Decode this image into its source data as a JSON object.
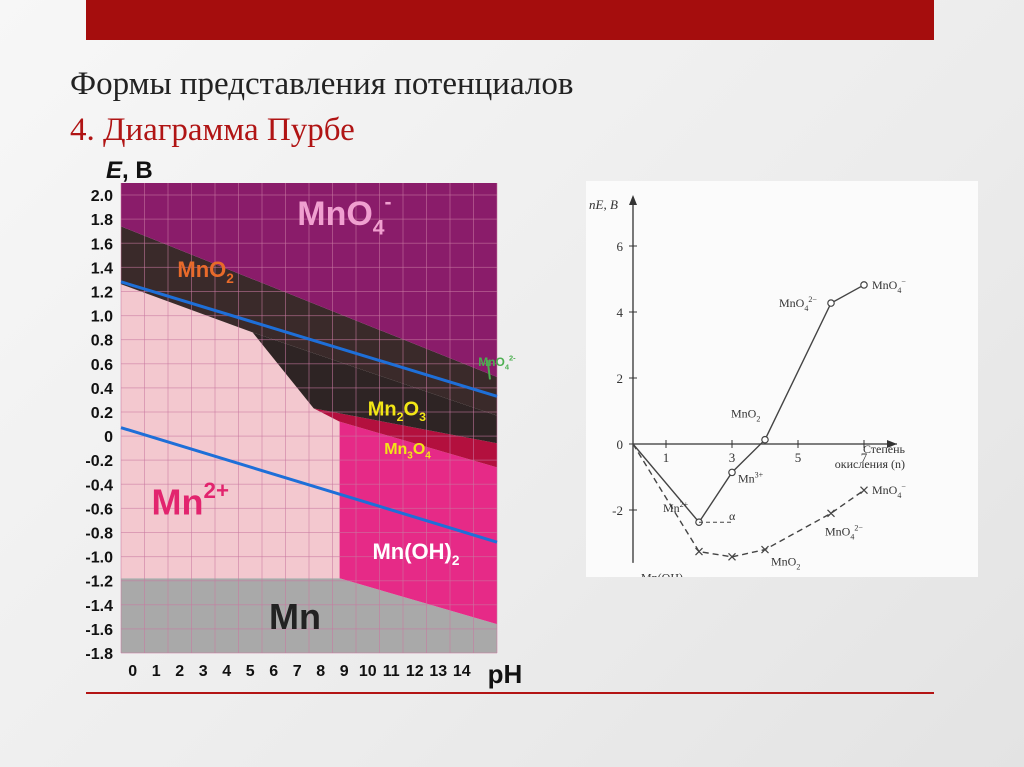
{
  "slide": {
    "title": "Формы представления потенциалов",
    "subtitle": "4. Диаграмма Пурбе"
  },
  "colors": {
    "top_bar": "#a50d0d",
    "title_red": "#b01414",
    "mno4_region": "#8a1c6a",
    "mno2_region": "#3a2a2a",
    "mn2o3_region": "#2e2424",
    "mn3o4_region": "#b3103e",
    "mn2_region": "#f3c8cf",
    "mnoh2_region": "#e62a87",
    "mn_region": "#a9a9a9",
    "water_lines": "#1e6fd8"
  },
  "chart_data": [
    {
      "type": "area",
      "kind": "pourbaix",
      "ylabel_italic": "E",
      "ylabel_unit": ", В",
      "xlabel": "pH",
      "xlim": [
        0,
        16
      ],
      "ylim": [
        -1.8,
        2.1
      ],
      "yticks": [
        "2.0",
        "1.8",
        "1.6",
        "1.4",
        "1.2",
        "1.0",
        "0.8",
        "0.6",
        "0.4",
        "0.2",
        "0",
        "-0.2",
        "-0.4",
        "-0.6",
        "-0.8",
        "-1.0",
        "-1.2",
        "-1.4",
        "-1.6",
        "-1.8"
      ],
      "xticks": [
        "0",
        "1",
        "2",
        "3",
        "4",
        "5",
        "6",
        "7",
        "8",
        "9",
        "10",
        "11",
        "12",
        "13",
        "14"
      ],
      "regions": [
        {
          "id": "mn",
          "label": "Mn",
          "label_sub": "",
          "label_sup": "",
          "label_color": "#222222",
          "points": [
            [
              0,
              -1.18
            ],
            [
              9.3,
              -1.18
            ],
            [
              16,
              -1.56
            ],
            [
              16,
              -1.8
            ],
            [
              0,
              -1.8
            ]
          ]
        },
        {
          "id": "mnoh2",
          "label": "Mn(OH)",
          "label_sub": "2",
          "label_sup": "",
          "label_color": "#ffffff",
          "points": [
            [
              9.3,
              0.12
            ],
            [
              16,
              -0.26
            ],
            [
              16,
              -1.56
            ],
            [
              9.3,
              -1.18
            ]
          ]
        },
        {
          "id": "mn2",
          "label": "Mn",
          "label_sub": "",
          "label_sup": "2+",
          "label_color": "#e2246e",
          "points": [
            [
              0,
              1.26
            ],
            [
              5.6,
              0.86
            ],
            [
              9.3,
              0.12
            ],
            [
              9.3,
              -1.18
            ],
            [
              0,
              -1.18
            ]
          ]
        },
        {
          "id": "mn3o4",
          "label": "Mn",
          "label_sub": "3",
          "label_sup": "",
          "label_color": "#f2e616",
          "label_tail": "O",
          "label_tail_sub": "4",
          "points": [
            [
              8.2,
              0.23
            ],
            [
              16,
              -0.06
            ],
            [
              16,
              -0.26
            ],
            [
              9.3,
              0.12
            ]
          ]
        },
        {
          "id": "mn2o3",
          "label": "Mn",
          "label_sub": "2",
          "label_sup": "",
          "label_color": "#f2e616",
          "label_tail": "O",
          "label_tail_sub": "3",
          "points": [
            [
              5.6,
              0.86
            ],
            [
              8.2,
              0.23
            ],
            [
              16,
              -0.06
            ],
            [
              16,
              0.17
            ]
          ]
        },
        {
          "id": "mno2",
          "label": "MnO",
          "label_sub": "2",
          "label_sup": "",
          "label_color": "#e86a2a",
          "points": [
            [
              0,
              1.74
            ],
            [
              16,
              0.49
            ],
            [
              16,
              0.17
            ],
            [
              5.6,
              0.86
            ],
            [
              0,
              1.26
            ]
          ]
        },
        {
          "id": "mno4",
          "label": "MnO",
          "label_sub": "4",
          "label_sup": "-",
          "label_color": "#f0a0d0",
          "points": [
            [
              0,
              2.1
            ],
            [
              16,
              2.1
            ],
            [
              16,
              0.49
            ],
            [
              0,
              1.74
            ]
          ]
        }
      ],
      "water_lines": [
        {
          "from": [
            0,
            1.28
          ],
          "to": [
            16,
            0.33
          ]
        },
        {
          "from": [
            0,
            0.07
          ],
          "to": [
            16,
            -0.88
          ]
        }
      ],
      "annotation": {
        "label": "MnO",
        "label_sub": "4",
        "label_sup": "2-",
        "label_color": "#4caf50"
      }
    },
    {
      "type": "line",
      "kind": "frost",
      "ylabel": "nE,  В",
      "xlabel_line1": "Степень",
      "xlabel_line2": "окисления (n)",
      "xlim": [
        0,
        8
      ],
      "ylim": [
        -3.3,
        7.2
      ],
      "xticks": [
        "1",
        "3",
        "5",
        "7"
      ],
      "yticks": [
        "6",
        "4",
        "2",
        "0",
        "-2"
      ],
      "series": [
        {
          "style": "circle",
          "points": [
            [
              0,
              0
            ],
            [
              2,
              -2.37
            ],
            [
              3,
              -0.86
            ],
            [
              4,
              0.13
            ],
            [
              6,
              4.27
            ],
            [
              7,
              4.82
            ]
          ]
        },
        {
          "style": "cross",
          "points": [
            [
              0,
              0
            ],
            [
              2,
              -3.26
            ],
            [
              3,
              -3.42
            ],
            [
              4,
              -3.2
            ],
            [
              6,
              -2.1
            ],
            [
              7,
              -1.4
            ]
          ]
        }
      ],
      "labels": [
        {
          "text": "MnO",
          "sub": "4",
          "sup": "−",
          "x": 7,
          "y": 4.82
        },
        {
          "text": "MnO",
          "sub": "4",
          "sup": "2−",
          "x": 6,
          "y": 4.27
        },
        {
          "text": "MnO",
          "sub": "2",
          "sup": "",
          "x": 4,
          "y": 0.13
        },
        {
          "text": "Mn",
          "sub": "",
          "sup": "3+",
          "x": 3,
          "y": -0.86
        },
        {
          "text": "Mn",
          "sub": "",
          "sup": "2+",
          "x": 2,
          "y": -2.37
        },
        {
          "text": "α",
          "sub": "",
          "sup": "",
          "x": 2,
          "y": -2.37
        },
        {
          "text": "Mn(OH)",
          "sub": "2",
          "sup": "",
          "x": 2,
          "y": -3.26
        },
        {
          "text": "Mn",
          "sub": "2",
          "sup": "",
          "x": 3,
          "y": -3.42,
          "tail": "O",
          "tail_sub": "3"
        },
        {
          "text": "MnO",
          "sub": "2",
          "sup": "",
          "x": 4,
          "y": -3.2
        },
        {
          "text": "MnO",
          "sub": "4",
          "sup": "2−",
          "x": 6,
          "y": -2.1
        },
        {
          "text": "MnO",
          "sub": "4",
          "sup": "−",
          "x": 7,
          "y": -1.4
        }
      ]
    }
  ]
}
